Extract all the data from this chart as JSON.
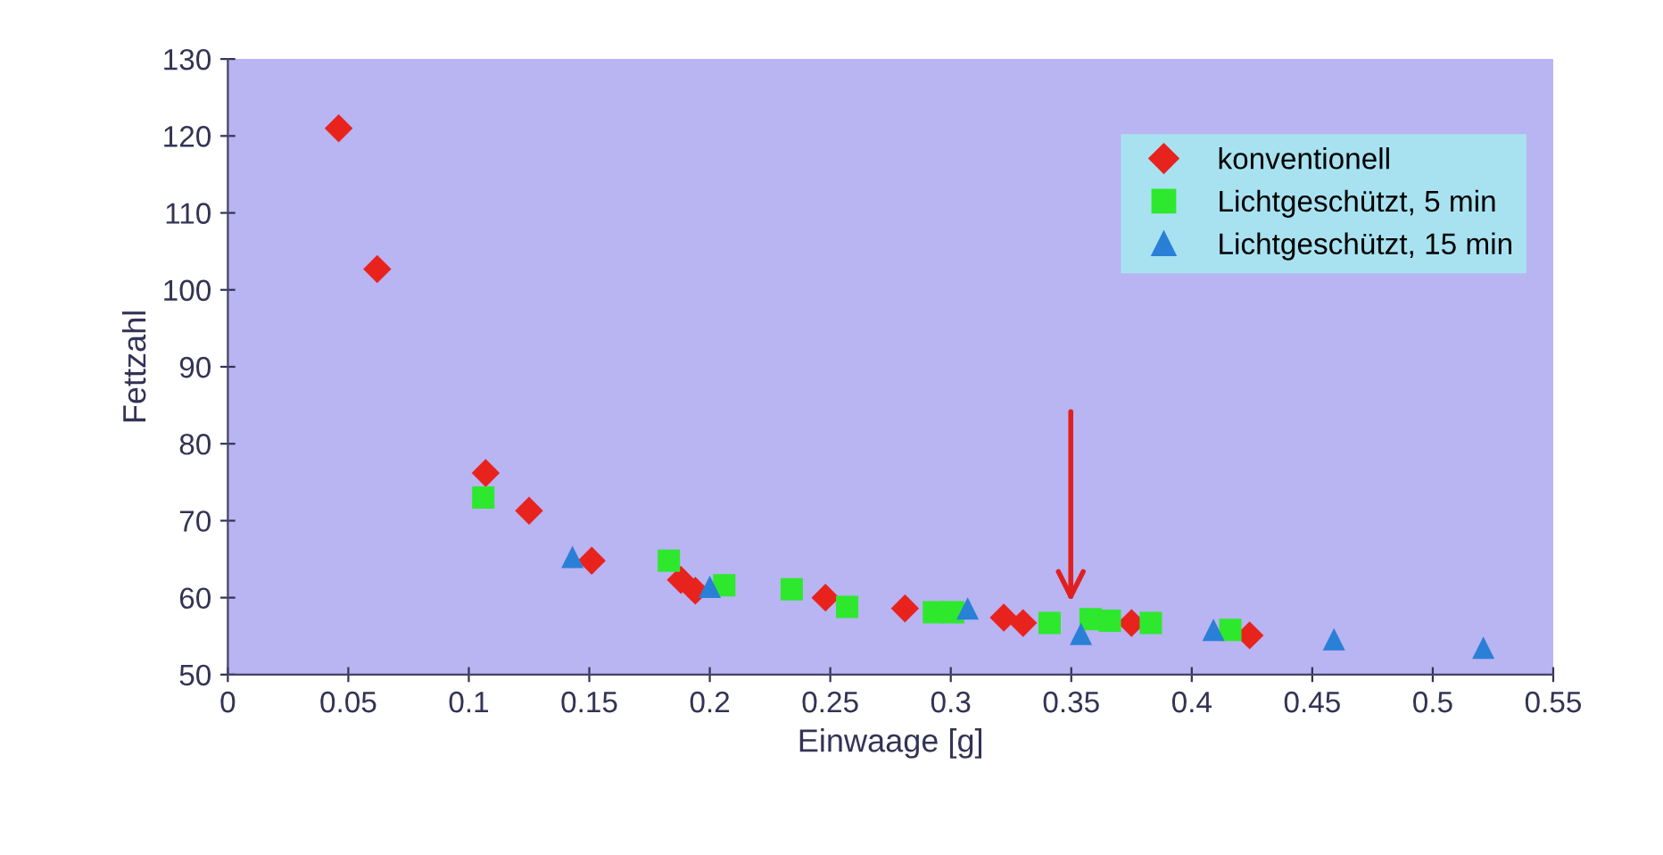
{
  "chart_data": {
    "type": "scatter",
    "xlabel": "Einwaage [g]",
    "ylabel": "Fettzahl",
    "xlim": [
      0,
      0.55
    ],
    "xticks": [
      0,
      0.05,
      0.1,
      0.15,
      0.2,
      0.25,
      0.3,
      0.35,
      0.4,
      0.45,
      0.5,
      0.55
    ],
    "ylim": [
      50,
      130
    ],
    "yticks": [
      50,
      60,
      70,
      80,
      90,
      100,
      110,
      120,
      130
    ],
    "grid": false,
    "legend": "top right",
    "series": [
      {
        "name": "konventionell",
        "color": "#e8231e",
        "marker": "diamond",
        "x": [
          0.046,
          0.062,
          0.107,
          0.125,
          0.151,
          0.188,
          0.194,
          0.248,
          0.281,
          0.322,
          0.33,
          0.375,
          0.424
        ],
        "values": [
          121,
          102.7,
          76.2,
          71.3,
          64.8,
          62.3,
          60.9,
          60,
          58.6,
          57.4,
          56.7,
          56.7,
          55.1
        ]
      },
      {
        "name": "Lichtgeschützt, 5 min",
        "color": "#2ee82e",
        "marker": "square",
        "x": [
          0.106,
          0.183,
          0.206,
          0.234,
          0.257,
          0.293,
          0.301,
          0.341,
          0.358,
          0.366,
          0.383,
          0.416
        ],
        "values": [
          73,
          64.8,
          61.6,
          61.1,
          58.8,
          58.1,
          58.1,
          56.7,
          57.2,
          57,
          56.7,
          55.8
        ]
      },
      {
        "name": "Lichtgeschützt, 15 min",
        "color": "#2a7fd6",
        "marker": "triangle",
        "x": [
          0.143,
          0.2,
          0.307,
          0.354,
          0.409,
          0.459,
          0.521
        ],
        "values": [
          65.3,
          61.4,
          58.6,
          55.3,
          55.8,
          54.6,
          53.5
        ]
      }
    ]
  }
}
